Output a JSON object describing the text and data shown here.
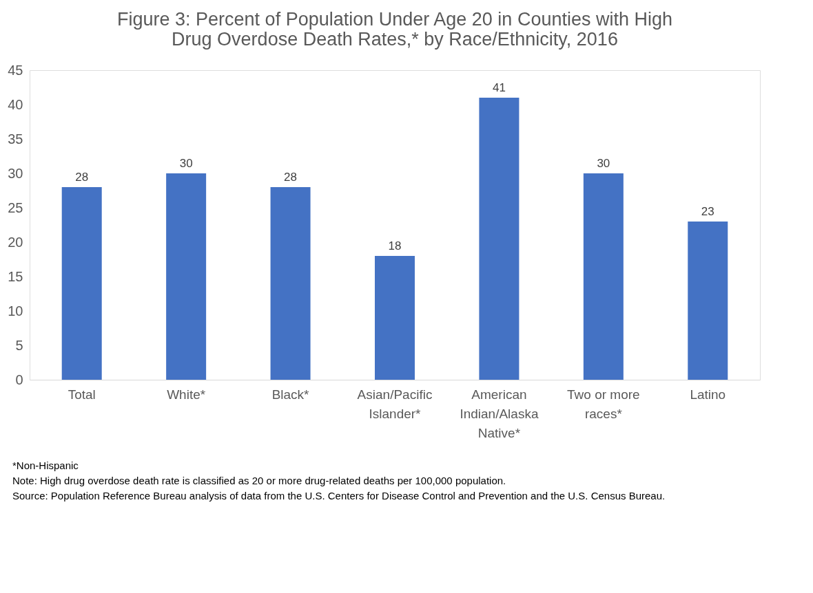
{
  "chart_data": {
    "type": "bar",
    "title": [
      "Figure 3: Percent of Population Under Age 20 in Counties with High",
      "Drug Overdose Death Rates,* by Race/Ethnicity, 2016"
    ],
    "categories": [
      "Total",
      "White*",
      "Black*",
      "Asian/Pacific Islander*",
      "American Indian/Alaska Native*",
      "Two or more races*",
      "Latino"
    ],
    "values": [
      28,
      30,
      28,
      18,
      41,
      30,
      23
    ],
    "color": "#4472c4",
    "ylim": [
      0,
      45
    ],
    "yticks": [
      0,
      5,
      10,
      15,
      20,
      25,
      30,
      35,
      40,
      45
    ],
    "grid": false,
    "data_labels": true,
    "annotations": [
      "*Non-Hispanic",
      "Note: High drug overdose death rate is classified as 20 or more drug-related deaths per 100,000 population.",
      "Source: Population Reference Bureau analysis of data from the U.S. Centers for Disease Control and Prevention and the U.S. Census Bureau."
    ]
  }
}
